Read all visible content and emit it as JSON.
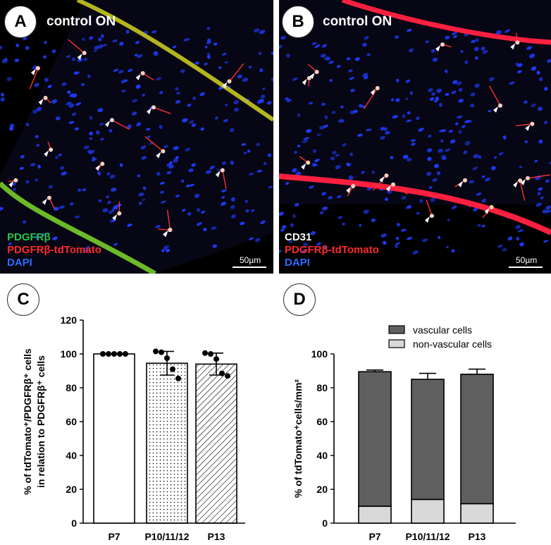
{
  "panels": {
    "A": {
      "letter": "A",
      "title": "control ON",
      "legend": [
        {
          "text": "PDGFRβ",
          "color": "#27c44a"
        },
        {
          "text": "PDGFRβ-tdTomato",
          "color": "#ff2a2a"
        },
        {
          "text": "DAPI",
          "color": "#2f6bff"
        }
      ],
      "scale": "50µm"
    },
    "B": {
      "letter": "B",
      "title": "control ON",
      "legend": [
        {
          "text": "CD31",
          "color": "#ffffff"
        },
        {
          "text": "PDGFRβ-tdTomato",
          "color": "#ff2a2a"
        },
        {
          "text": "DAPI",
          "color": "#2f6bff"
        }
      ],
      "scale": "50µm"
    },
    "C": {
      "letter": "C"
    },
    "D": {
      "letter": "D"
    }
  },
  "chart_data": [
    {
      "panel": "C",
      "type": "bar",
      "categories": [
        "P7",
        "P10/11/12",
        "P13"
      ],
      "values": [
        100,
        94.5,
        94
      ],
      "error_sd": [
        0,
        7,
        6.5
      ],
      "points": [
        [
          100,
          100,
          100,
          100,
          100
        ],
        [
          101.5,
          101,
          97.5,
          91,
          85.5
        ],
        [
          100.5,
          100,
          97,
          88.5,
          87
        ]
      ],
      "fills": [
        "solid-white",
        "dots",
        "diagonal-hatch"
      ],
      "ylabel": [
        "% of tdTomato⁺/PDGFRβ⁺ cells",
        "in relation to PDGFRβ⁺ cells"
      ],
      "ylim": [
        0,
        120
      ],
      "yticks": [
        0,
        20,
        40,
        60,
        80,
        100,
        120
      ],
      "grid": false
    },
    {
      "panel": "D",
      "type": "bar",
      "stacked": true,
      "categories": [
        "P7",
        "P10/11/12",
        "P13"
      ],
      "series": [
        {
          "name": "non-vascular cells",
          "values": [
            10,
            14,
            11.5
          ],
          "error": [
            1,
            4,
            3.5
          ],
          "color": "#d9d9d9"
        },
        {
          "name": "vascular cells",
          "values": [
            79.5,
            71,
            76.5
          ],
          "error": [
            1,
            3.5,
            3
          ],
          "color": "#5f5f5f"
        }
      ],
      "totals": [
        89.5,
        85,
        88
      ],
      "ylabel": "% of tdTomato⁺cells/mm²",
      "ylim": [
        0,
        100
      ],
      "yticks": [
        0,
        20,
        40,
        60,
        80,
        100
      ],
      "legend_order": [
        "vascular cells",
        "non-vascular cells"
      ],
      "legend_position": "top-right",
      "grid": false
    }
  ]
}
